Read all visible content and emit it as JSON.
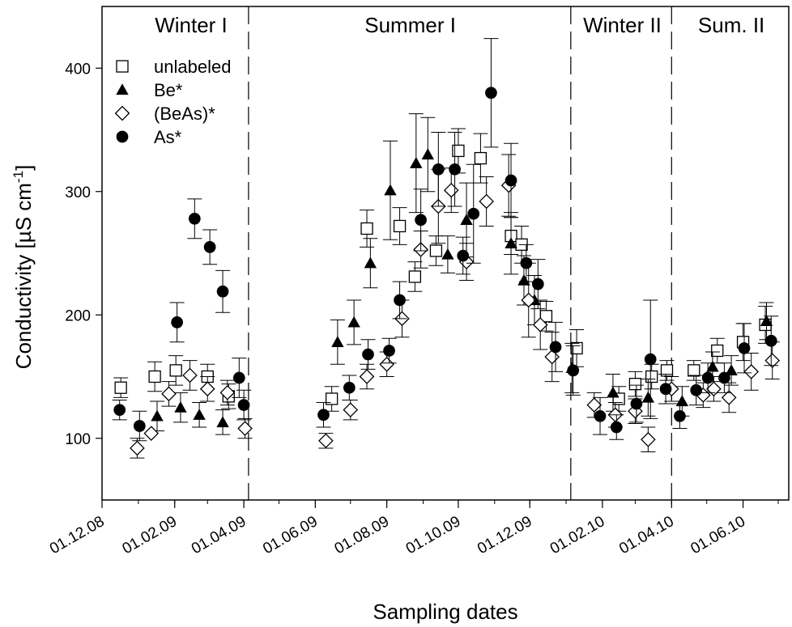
{
  "chart_data": {
    "type": "scatter",
    "xlabel": "Sampling dates",
    "ylabel": "Conductivity [µS cm",
    "ylabel_sup": "-1",
    "ylabel_close": "]",
    "xlim": [
      "2008-12-01",
      "2010-07-10"
    ],
    "ylim": [
      50,
      450
    ],
    "y_ticks": [
      100,
      200,
      300,
      400
    ],
    "x_ticks": [
      {
        "label": "01.12.08",
        "date": "2008-12-01"
      },
      {
        "label": "01.02.09",
        "date": "2009-02-01"
      },
      {
        "label": "01.04.09",
        "date": "2009-04-01"
      },
      {
        "label": "01.06.09",
        "date": "2009-06-01"
      },
      {
        "label": "01.08.09",
        "date": "2009-08-01"
      },
      {
        "label": "01.10.09",
        "date": "2009-10-01"
      },
      {
        "label": "01.12.09",
        "date": "2009-12-01"
      },
      {
        "label": "01.02.10",
        "date": "2010-02-01"
      },
      {
        "label": "01.04.10",
        "date": "2010-04-01"
      },
      {
        "label": "01.06.10",
        "date": "2010-06-01"
      }
    ],
    "season_dividers": [
      "2009-04-05",
      "2010-01-05",
      "2010-04-01"
    ],
    "seasons": [
      {
        "label": "Winter I",
        "center": "2009-02-15"
      },
      {
        "label": "Summer I",
        "center": "2009-08-21"
      },
      {
        "label": "Winter II",
        "center": "2010-02-18"
      },
      {
        "label": "Sum. II",
        "center": "2010-05-22"
      }
    ],
    "legend_position": "top-left",
    "series": [
      {
        "name": "unlabeled",
        "marker": "open-square",
        "points": [
          {
            "x": "2008-12-17",
            "y": 141,
            "err": 8
          },
          {
            "x": "2009-01-15",
            "y": 150,
            "err": 12
          },
          {
            "x": "2009-02-02",
            "y": 155,
            "err": 12
          },
          {
            "x": "2009-03-01",
            "y": 150,
            "err": 10
          },
          {
            "x": "2009-03-19",
            "y": 134,
            "err": 10
          },
          {
            "x": "2009-06-15",
            "y": 132,
            "err": 10
          },
          {
            "x": "2009-07-15",
            "y": 270,
            "err": 15
          },
          {
            "x": "2009-08-12",
            "y": 272,
            "err": 15
          },
          {
            "x": "2009-08-25",
            "y": 231,
            "err": 12
          },
          {
            "x": "2009-09-12",
            "y": 252,
            "err": 12
          },
          {
            "x": "2009-10-01",
            "y": 333,
            "err": 18
          },
          {
            "x": "2009-10-20",
            "y": 327,
            "err": 20
          },
          {
            "x": "2009-11-15",
            "y": 264,
            "err": 15
          },
          {
            "x": "2009-11-24",
            "y": 257,
            "err": 15
          },
          {
            "x": "2009-12-15",
            "y": 199,
            "err": 12
          },
          {
            "x": "2010-01-10",
            "y": 173,
            "err": 15
          },
          {
            "x": "2010-02-15",
            "y": 132,
            "err": 10
          },
          {
            "x": "2010-03-01",
            "y": 144,
            "err": 10
          },
          {
            "x": "2010-03-15",
            "y": 150,
            "err": 10
          },
          {
            "x": "2010-03-28",
            "y": 155,
            "err": 8
          },
          {
            "x": "2010-04-20",
            "y": 155,
            "err": 8
          },
          {
            "x": "2010-05-10",
            "y": 171,
            "err": 10
          },
          {
            "x": "2010-06-01",
            "y": 178,
            "err": 15
          },
          {
            "x": "2010-06-20",
            "y": 192,
            "err": 15
          }
        ]
      },
      {
        "name": "Be*",
        "marker": "filled-triangle",
        "points": [
          {
            "x": "2009-01-17",
            "y": 118,
            "err": 12
          },
          {
            "x": "2009-02-06",
            "y": 125,
            "err": 12
          },
          {
            "x": "2009-02-22",
            "y": 119,
            "err": 10
          },
          {
            "x": "2009-03-14",
            "y": 113,
            "err": 10
          },
          {
            "x": "2009-06-20",
            "y": 178,
            "err": 18
          },
          {
            "x": "2009-07-04",
            "y": 194,
            "err": 18
          },
          {
            "x": "2009-07-18",
            "y": 242,
            "err": 20
          },
          {
            "x": "2009-08-04",
            "y": 301,
            "err": 40
          },
          {
            "x": "2009-08-26",
            "y": 323,
            "err": 40
          },
          {
            "x": "2009-09-05",
            "y": 330,
            "err": 30
          },
          {
            "x": "2009-09-22",
            "y": 249,
            "err": 15
          },
          {
            "x": "2009-10-08",
            "y": 277,
            "err": 30
          },
          {
            "x": "2009-11-15",
            "y": 258,
            "err": 25
          },
          {
            "x": "2009-11-26",
            "y": 228,
            "err": 20
          },
          {
            "x": "2009-12-05",
            "y": 212,
            "err": 20
          },
          {
            "x": "2010-01-06",
            "y": 157,
            "err": 20
          },
          {
            "x": "2010-02-10",
            "y": 137,
            "err": 15
          },
          {
            "x": "2010-03-12",
            "y": 133,
            "err": 15
          },
          {
            "x": "2010-04-10",
            "y": 130,
            "err": 12
          },
          {
            "x": "2010-05-06",
            "y": 158,
            "err": 12
          },
          {
            "x": "2010-05-22",
            "y": 155,
            "err": 12
          },
          {
            "x": "2010-06-21",
            "y": 195,
            "err": 15
          }
        ]
      },
      {
        "name": "(BeAs)*",
        "marker": "open-diamond",
        "points": [
          {
            "x": "2008-12-31",
            "y": 92,
            "err": 8
          },
          {
            "x": "2009-01-12",
            "y": 104,
            "err": 0
          },
          {
            "x": "2009-01-27",
            "y": 136,
            "err": 10
          },
          {
            "x": "2009-02-14",
            "y": 151,
            "err": 12
          },
          {
            "x": "2009-03-01",
            "y": 140,
            "err": 10
          },
          {
            "x": "2009-03-18",
            "y": 137,
            "err": 10
          },
          {
            "x": "2009-04-02",
            "y": 108,
            "err": 8
          },
          {
            "x": "2009-06-10",
            "y": 98,
            "err": 6
          },
          {
            "x": "2009-07-01",
            "y": 123,
            "err": 8
          },
          {
            "x": "2009-07-15",
            "y": 150,
            "err": 10
          },
          {
            "x": "2009-08-01",
            "y": 160,
            "err": 10
          },
          {
            "x": "2009-08-14",
            "y": 197,
            "err": 15
          },
          {
            "x": "2009-08-30",
            "y": 253,
            "err": 15
          },
          {
            "x": "2009-09-14",
            "y": 288,
            "err": 30
          },
          {
            "x": "2009-09-25",
            "y": 301,
            "err": 18
          },
          {
            "x": "2009-10-08",
            "y": 243,
            "err": 15
          },
          {
            "x": "2009-10-25",
            "y": 292,
            "err": 20
          },
          {
            "x": "2009-11-13",
            "y": 305,
            "err": 25
          },
          {
            "x": "2009-11-30",
            "y": 212,
            "err": 30
          },
          {
            "x": "2009-12-10",
            "y": 192,
            "err": 20
          },
          {
            "x": "2009-12-20",
            "y": 166,
            "err": 20
          },
          {
            "x": "2010-01-25",
            "y": 127,
            "err": 10
          },
          {
            "x": "2010-02-12",
            "y": 119,
            "err": 10
          },
          {
            "x": "2010-03-01",
            "y": 122,
            "err": 10
          },
          {
            "x": "2010-03-12",
            "y": 99,
            "err": 10
          },
          {
            "x": "2010-04-01",
            "y": 140,
            "err": 10
          },
          {
            "x": "2010-04-28",
            "y": 135,
            "err": 10
          },
          {
            "x": "2010-05-07",
            "y": 140,
            "err": 10
          },
          {
            "x": "2010-05-20",
            "y": 133,
            "err": 12
          },
          {
            "x": "2010-06-08",
            "y": 154,
            "err": 15
          },
          {
            "x": "2010-06-26",
            "y": 163,
            "err": 15
          }
        ]
      },
      {
        "name": "As*",
        "marker": "filled-circle",
        "points": [
          {
            "x": "2008-12-16",
            "y": 123,
            "err": 8
          },
          {
            "x": "2009-01-02",
            "y": 110,
            "err": 12
          },
          {
            "x": "2009-02-03",
            "y": 194,
            "err": 16
          },
          {
            "x": "2009-02-18",
            "y": 278,
            "err": 16
          },
          {
            "x": "2009-03-03",
            "y": 255,
            "err": 14
          },
          {
            "x": "2009-03-14",
            "y": 219,
            "err": 17
          },
          {
            "x": "2009-03-28",
            "y": 149,
            "err": 16
          },
          {
            "x": "2009-04-01",
            "y": 127,
            "err": 12
          },
          {
            "x": "2009-06-08",
            "y": 119,
            "err": 10
          },
          {
            "x": "2009-06-30",
            "y": 141,
            "err": 10
          },
          {
            "x": "2009-07-16",
            "y": 168,
            "err": 12
          },
          {
            "x": "2009-08-03",
            "y": 171,
            "err": 10
          },
          {
            "x": "2009-08-12",
            "y": 212,
            "err": 15
          },
          {
            "x": "2009-08-30",
            "y": 277,
            "err": 25
          },
          {
            "x": "2009-09-14",
            "y": 318,
            "err": 30
          },
          {
            "x": "2009-09-28",
            "y": 318,
            "err": 30
          },
          {
            "x": "2009-10-05",
            "y": 248,
            "err": 15
          },
          {
            "x": "2009-10-14",
            "y": 282,
            "err": 40
          },
          {
            "x": "2009-10-29",
            "y": 380,
            "err": 44
          },
          {
            "x": "2009-11-15",
            "y": 309,
            "err": 30
          },
          {
            "x": "2009-11-28",
            "y": 242,
            "err": 15
          },
          {
            "x": "2009-12-08",
            "y": 225,
            "err": 20
          },
          {
            "x": "2009-12-23",
            "y": 174,
            "err": 20
          },
          {
            "x": "2010-01-07",
            "y": 155,
            "err": 20
          },
          {
            "x": "2010-01-30",
            "y": 118,
            "err": 15
          },
          {
            "x": "2010-02-13",
            "y": 109,
            "err": 10
          },
          {
            "x": "2010-03-02",
            "y": 128,
            "err": 15
          },
          {
            "x": "2010-03-14",
            "y": 164,
            "err": 48
          },
          {
            "x": "2010-03-27",
            "y": 140,
            "err": 12
          },
          {
            "x": "2010-04-08",
            "y": 118,
            "err": 10
          },
          {
            "x": "2010-04-22",
            "y": 139,
            "err": 12
          },
          {
            "x": "2010-05-02",
            "y": 149,
            "err": 12
          },
          {
            "x": "2010-05-16",
            "y": 149,
            "err": 12
          },
          {
            "x": "2010-06-02",
            "y": 173,
            "err": 20
          },
          {
            "x": "2010-06-25",
            "y": 179,
            "err": 20
          }
        ]
      }
    ]
  }
}
